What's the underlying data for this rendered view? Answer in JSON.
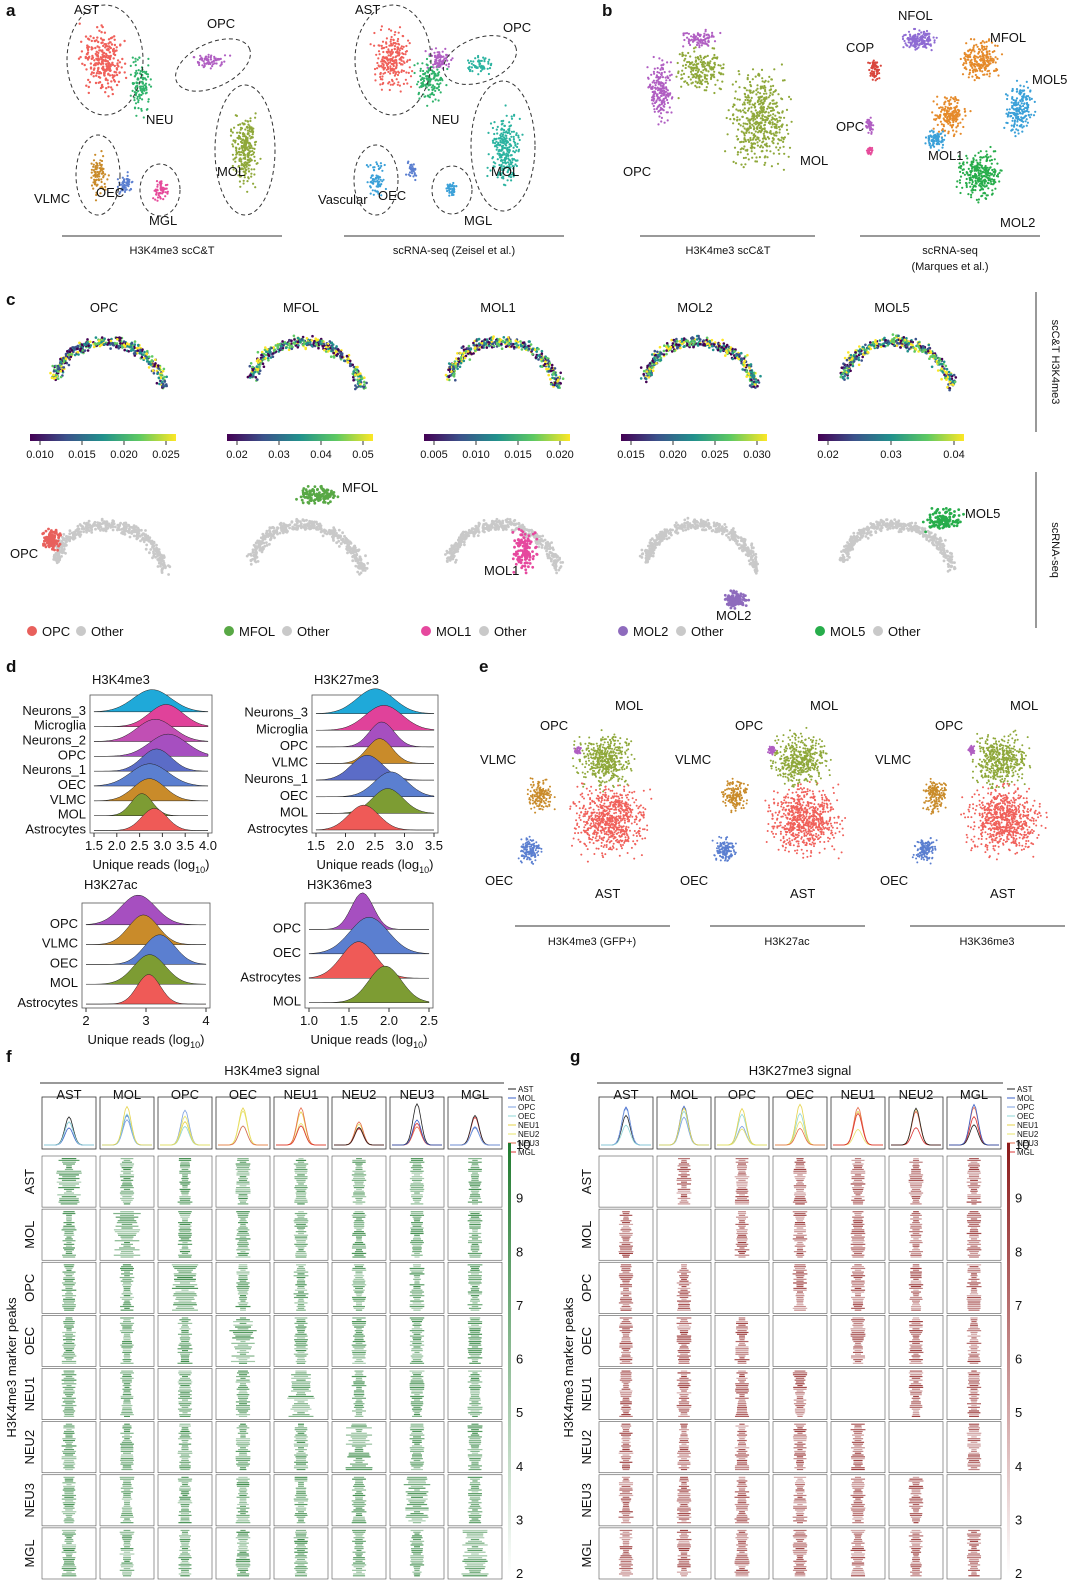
{
  "panels": {
    "a": "a",
    "b": "b",
    "c": "c",
    "d": "d",
    "e": "e",
    "f": "f",
    "g": "g"
  },
  "a": {
    "left": {
      "caption": "H3K4me3 scC&T",
      "labels": [
        "AST",
        "OPC",
        "NEU",
        "MOL",
        "VLMC",
        "OEC",
        "MGL"
      ]
    },
    "right": {
      "caption": "scRNA-seq (Zeisel et al.)",
      "labels": [
        "AST",
        "OPC",
        "NEU",
        "MOL",
        "Vascular",
        "OEC",
        "MGL"
      ]
    }
  },
  "b": {
    "left": {
      "caption": "H3K4me3 scC&T",
      "labels": [
        "OPC",
        "MOL"
      ]
    },
    "right": {
      "caption_line1": "scRNA-seq",
      "caption_line2": "(Marques et al.)",
      "labels": [
        "NFOL",
        "MFOL",
        "COP",
        "MOL5",
        "OPC",
        "MOL1",
        "MOL2"
      ]
    }
  },
  "c": {
    "row1_side": "scC&T H3K4me3",
    "row2_side": "scRNA-seq",
    "columns": [
      {
        "title": "OPC",
        "ticks": [
          "0.010",
          "0.015",
          "0.020",
          "0.025"
        ],
        "label": "OPC",
        "color": "#e8605c",
        "legend": "OPC",
        "other": "Other"
      },
      {
        "title": "MFOL",
        "ticks": [
          "0.02",
          "0.03",
          "0.04",
          "0.05"
        ],
        "label": "MFOL",
        "color": "#58a845",
        "legend": "MFOL",
        "other": "Other"
      },
      {
        "title": "MOL1",
        "ticks": [
          "0.005",
          "0.010",
          "0.015",
          "0.020"
        ],
        "label": "MOL1",
        "color": "#e6489e",
        "legend": "MOL1",
        "other": "Other"
      },
      {
        "title": "MOL2",
        "ticks": [
          "0.015",
          "0.020",
          "0.025",
          "0.030"
        ],
        "label": "MOL2",
        "color": "#8e6bbd",
        "legend": "MOL2",
        "other": "Other"
      },
      {
        "title": "MOL5",
        "ticks": [
          "0.02",
          "0.03",
          "0.04"
        ],
        "label": "MOL5",
        "color": "#27ad4b",
        "legend": "MOL5",
        "other": "Other"
      }
    ]
  },
  "d": {
    "plots": [
      {
        "title": "H3K4me3",
        "rows": [
          "Neurons_3",
          "Microglia",
          "Neurons_2",
          "OPC",
          "Neurons_1",
          "OEC",
          "VLMC",
          "MOL",
          "Astrocytes"
        ],
        "ticks": [
          "1.5",
          "2.0",
          "2.5",
          "3.0",
          "3.5",
          "4.0"
        ],
        "xlabel": "Unique reads (log",
        "sub": "10",
        "close": ")"
      },
      {
        "title": "H3K27me3",
        "rows": [
          "Neurons_3",
          "Microglia",
          "OPC",
          "VLMC",
          "Neurons_1",
          "OEC",
          "MOL",
          "Astrocytes"
        ],
        "ticks": [
          "1.5",
          "2.0",
          "2.5",
          "3.0",
          "3.5"
        ],
        "xlabel": "Unique reads (log",
        "sub": "10",
        "close": ")"
      },
      {
        "title": "H3K27ac",
        "rows": [
          "OPC",
          "VLMC",
          "OEC",
          "MOL",
          "Astrocytes"
        ],
        "ticks": [
          "2",
          "3",
          "4"
        ],
        "xlabel": "Unique reads (log",
        "sub": "10",
        "close": ")"
      },
      {
        "title": "H3K36me3",
        "rows": [
          "OPC",
          "OEC",
          "Astrocytes",
          "MOL"
        ],
        "ticks": [
          "1.0",
          "1.5",
          "2.0",
          "2.5"
        ],
        "xlabel": "Unique reads (log",
        "sub": "10",
        "close": ")"
      }
    ]
  },
  "e": {
    "plots": [
      {
        "caption": "H3K4me3 (GFP+)",
        "labels": [
          "MOL",
          "OPC",
          "VLMC",
          "OEC",
          "AST"
        ]
      },
      {
        "caption": "H3K27ac",
        "labels": [
          "MOL",
          "OPC",
          "VLMC",
          "OEC",
          "AST"
        ]
      },
      {
        "caption": "H3K36me3",
        "labels": [
          "MOL",
          "OPC",
          "VLMC",
          "OEC",
          "AST"
        ]
      }
    ]
  },
  "f": {
    "title": "H3K4me3 signal",
    "columns": [
      "AST",
      "MOL",
      "OPC",
      "OEC",
      "NEU1",
      "NEU2",
      "NEU3",
      "MGL"
    ],
    "rows": [
      "AST",
      "MOL",
      "OPC",
      "OEC",
      "NEU1",
      "NEU2",
      "NEU3",
      "MGL"
    ],
    "ylabel": "H3K4me3 marker peaks",
    "legend": [
      "AST",
      "MOL",
      "OPC",
      "OEC",
      "NEU1",
      "NEU2",
      "NEU3",
      "MGL"
    ],
    "scale": [
      "10",
      "9",
      "8",
      "7",
      "6",
      "5",
      "4",
      "3",
      "2"
    ],
    "color": "#1f7a2e"
  },
  "g": {
    "title": "H3K27me3 signal",
    "columns": [
      "AST",
      "MOL",
      "OPC",
      "OEC",
      "NEU1",
      "NEU2",
      "MGL"
    ],
    "rows": [
      "AST",
      "MOL",
      "OPC",
      "OEC",
      "NEU1",
      "NEU2",
      "NEU3",
      "MGL"
    ],
    "ylabel": "H3K4me3 marker peaks",
    "legend": [
      "AST",
      "MOL",
      "OPC",
      "OEC",
      "NEU1",
      "NEU2",
      "NEU3",
      "MGL"
    ],
    "scale": [
      "10",
      "9",
      "8",
      "7",
      "6",
      "5",
      "4",
      "3",
      "2"
    ],
    "color": "#8b1a1a"
  },
  "colors": {
    "AST": "#f0605a",
    "MOL": "#8fa83a",
    "OPC": "#b05ec2",
    "NEU": "#2fb36b",
    "VLMC": "#c98b2a",
    "OEC": "#5b7fd0",
    "MGL": "#e64a9a",
    "grey": "#c9c9c9"
  }
}
